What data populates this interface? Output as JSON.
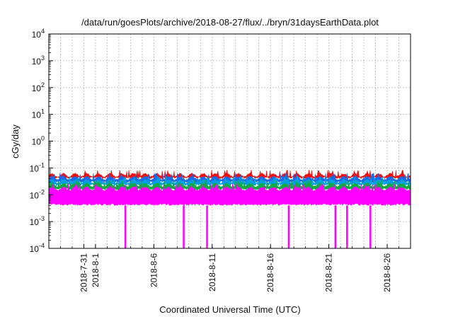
{
  "chart_data": {
    "type": "area",
    "title": "/data/run/goesPlots/archive/2018-08-27/flux/../bryn/31daysEarthData.plot",
    "xlabel": "Coordinated Universal Time (UTC)",
    "ylabel": "cGy/day",
    "yscale": "log",
    "ylim": [
      0.0001,
      10000
    ],
    "xlim": [
      "2018-07-28",
      "2018-08-28"
    ],
    "grid": true,
    "legend": "none",
    "y_ticks": [
      {
        "value": 0.0001,
        "base": "10",
        "exp": "-4"
      },
      {
        "value": 0.001,
        "base": "10",
        "exp": "-3"
      },
      {
        "value": 0.01,
        "base": "10",
        "exp": "-2"
      },
      {
        "value": 0.1,
        "base": "10",
        "exp": "-1"
      },
      {
        "value": 1,
        "base": "10",
        "exp": "0"
      },
      {
        "value": 10,
        "base": "10",
        "exp": "1"
      },
      {
        "value": 100,
        "base": "10",
        "exp": "2"
      },
      {
        "value": 1000,
        "base": "10",
        "exp": "3"
      },
      {
        "value": 10000,
        "base": "10",
        "exp": "4"
      }
    ],
    "x_ticks": [
      {
        "date": "2018-07-31",
        "label": "2018-7-31"
      },
      {
        "date": "2018-08-01",
        "label": "2018-8-1"
      },
      {
        "date": "2018-08-06",
        "label": "2018-8-6"
      },
      {
        "date": "2018-08-11",
        "label": "2018-8-11"
      },
      {
        "date": "2018-08-16",
        "label": "2018-8-16"
      },
      {
        "date": "2018-08-21",
        "label": "2018-8-21"
      },
      {
        "date": "2018-08-26",
        "label": "2018-8-26"
      }
    ],
    "series": [
      {
        "color": "#ee1111",
        "high": 0.065,
        "low": 0.04,
        "peaks": 0.085
      },
      {
        "color": "#1a6be8",
        "high": 0.05,
        "low": 0.028,
        "peaks": 0.065
      },
      {
        "color": "#00a0e0",
        "high": 0.038,
        "low": 0.022,
        "peaks": 0.05
      },
      {
        "color": "#11aa44",
        "high": 0.028,
        "low": 0.015,
        "peaks": 0.035
      },
      {
        "color": "#ff00ff",
        "high": 0.02,
        "low": 0.004,
        "peaks": 0.026
      }
    ],
    "dropouts": [
      "2018-08-03",
      "2018-08-08",
      "2018-08-10",
      "2018-08-17",
      "2018-08-21",
      "2018-08-22",
      "2018-08-24"
    ],
    "dropout_value": 0.0001
  }
}
